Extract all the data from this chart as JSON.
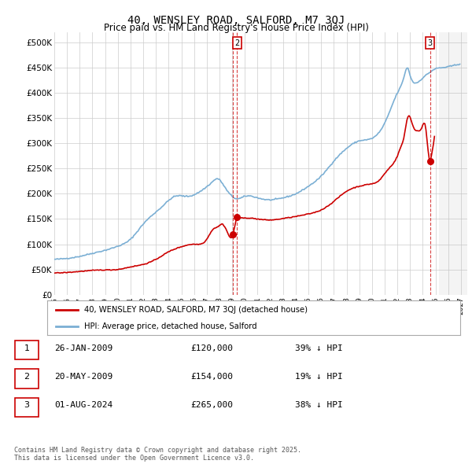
{
  "title": "40, WENSLEY ROAD, SALFORD, M7 3QJ",
  "subtitle": "Price paid vs. HM Land Registry's House Price Index (HPI)",
  "xlim": [
    1995.0,
    2027.5
  ],
  "ylim": [
    0,
    520000
  ],
  "yticks": [
    0,
    50000,
    100000,
    150000,
    200000,
    250000,
    300000,
    350000,
    400000,
    450000,
    500000
  ],
  "ytick_labels": [
    "£0",
    "£50K",
    "£100K",
    "£150K",
    "£200K",
    "£250K",
    "£300K",
    "£350K",
    "£400K",
    "£450K",
    "£500K"
  ],
  "hpi_color": "#7bafd4",
  "price_color": "#cc0000",
  "sale1_date": 2009.07,
  "sale1_price": 120000,
  "sale2_date": 2009.38,
  "sale2_price": 154000,
  "sale3_date": 2024.58,
  "sale3_price": 265000,
  "legend_price_label": "40, WENSLEY ROAD, SALFORD, M7 3QJ (detached house)",
  "legend_hpi_label": "HPI: Average price, detached house, Salford",
  "table_data": [
    [
      "1",
      "26-JAN-2009",
      "£120,000",
      "39% ↓ HPI"
    ],
    [
      "2",
      "20-MAY-2009",
      "£154,000",
      "19% ↓ HPI"
    ],
    [
      "3",
      "01-AUG-2024",
      "£265,000",
      "38% ↓ HPI"
    ]
  ],
  "footer": "Contains HM Land Registry data © Crown copyright and database right 2025.\nThis data is licensed under the Open Government Licence v3.0.",
  "bg_color": "#ffffff",
  "grid_color": "#cccccc",
  "hpi_anchors_t": [
    1995.0,
    1996.0,
    1997.0,
    1998.0,
    1999.0,
    2000.0,
    2001.0,
    2002.0,
    2003.5,
    2004.5,
    2005.5,
    2006.5,
    2007.5,
    2007.8,
    2008.5,
    2009.0,
    2009.4,
    2010.0,
    2011.0,
    2012.0,
    2013.0,
    2014.0,
    2015.0,
    2016.0,
    2017.0,
    2018.0,
    2019.0,
    2020.0,
    2021.0,
    2021.5,
    2022.0,
    2022.5,
    2022.8,
    2023.0,
    2023.5,
    2024.0,
    2024.5,
    2025.0,
    2025.5,
    2026.0,
    2026.5,
    2027.0
  ],
  "hpi_anchors_v": [
    70000,
    72000,
    76000,
    82000,
    88000,
    96000,
    110000,
    140000,
    175000,
    195000,
    195000,
    205000,
    225000,
    230000,
    210000,
    195000,
    190000,
    195000,
    192000,
    188000,
    192000,
    200000,
    215000,
    235000,
    265000,
    290000,
    305000,
    310000,
    340000,
    370000,
    400000,
    430000,
    450000,
    435000,
    420000,
    430000,
    440000,
    448000,
    450000,
    452000,
    455000,
    458000
  ],
  "price_anchors_t": [
    1995.0,
    1996.0,
    1997.0,
    1998.0,
    1999.0,
    2000.0,
    2001.0,
    2002.0,
    2003.0,
    2004.0,
    2005.0,
    2006.0,
    2007.0,
    2007.5,
    2007.9,
    2008.2,
    2008.6,
    2009.07,
    2009.38,
    2009.5,
    2010.0,
    2011.0,
    2012.0,
    2013.0,
    2014.0,
    2015.0,
    2016.0,
    2017.0,
    2018.0,
    2019.0,
    2020.0,
    2020.5,
    2021.0,
    2021.5,
    2022.0,
    2022.3,
    2022.5,
    2022.7,
    2022.9,
    2023.1,
    2023.3,
    2023.6,
    2023.9,
    2024.2,
    2024.58,
    2024.7,
    2024.9,
    2025.0
  ],
  "price_anchors_v": [
    43000,
    44000,
    46000,
    48000,
    49000,
    50000,
    55000,
    60000,
    70000,
    85000,
    95000,
    100000,
    110000,
    130000,
    135000,
    140000,
    125000,
    120000,
    154000,
    154000,
    152000,
    150000,
    148000,
    151000,
    155000,
    160000,
    168000,
    185000,
    205000,
    215000,
    220000,
    225000,
    240000,
    255000,
    275000,
    295000,
    310000,
    340000,
    355000,
    345000,
    330000,
    325000,
    330000,
    335000,
    265000,
    280000,
    310000,
    340000
  ]
}
